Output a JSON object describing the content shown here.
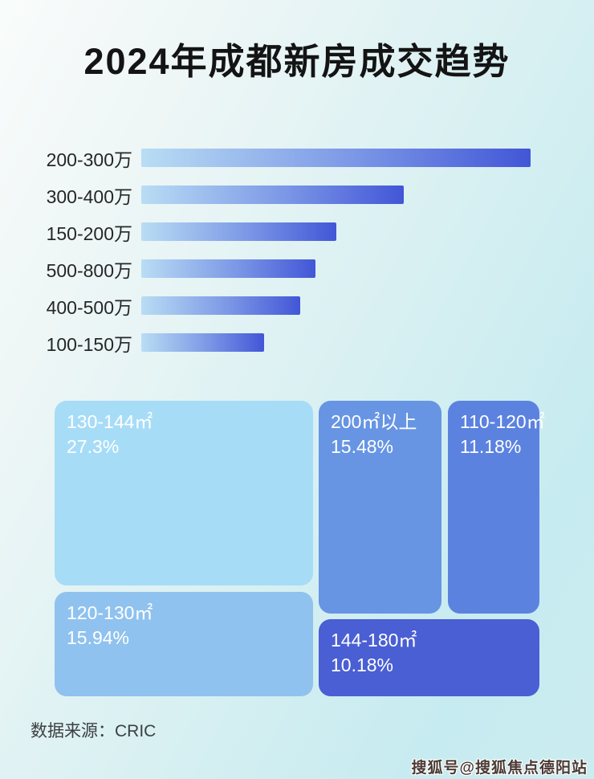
{
  "title": "2024年成都新房成交趋势",
  "source": {
    "label": "数据来源：CRIC"
  },
  "watermark": {
    "text": "搜狐号@搜狐焦点德阳站"
  },
  "colors": {
    "background_start": "#f9fcfb",
    "background_end": "#c6ebf0",
    "title": "#141414",
    "bar_label": "#262626",
    "bar_gradient": {
      "start": "#b9ddf4",
      "mid": "#7b97e6",
      "end": "#4256d7"
    },
    "source_text": "#3c4043",
    "watermark_text": "#4b3a34"
  },
  "chart_data": [
    {
      "type": "bar",
      "orientation": "horizontal",
      "title": "2024年成都新房成交趋势",
      "categories": [
        "200-300万",
        "300-400万",
        "150-200万",
        "500-800万",
        "400-500万",
        "100-150万"
      ],
      "values": [
        100,
        67.4,
        50.1,
        44.7,
        40.8,
        31.5
      ],
      "value_unit": "relative bar length, % of longest bar (bars carry no printed values)",
      "legend": "none",
      "grid": "off"
    },
    {
      "type": "treemap",
      "items": [
        {
          "label": "130-144㎡",
          "value": 27.3,
          "value_text": "27.3%",
          "color": "#a7dcf7"
        },
        {
          "label": "200㎡以上",
          "value": 15.48,
          "value_text": "15.48%",
          "color": "#6795e3"
        },
        {
          "label": "110-120㎡",
          "value": 11.18,
          "value_text": "11.18%",
          "color": "#5c82e0"
        },
        {
          "label": "120-130㎡",
          "value": 15.94,
          "value_text": "15.94%",
          "color": "#8fc2ee"
        },
        {
          "label": "144-180㎡",
          "value": 10.18,
          "value_text": "10.18%",
          "color": "#4a5fd3"
        }
      ]
    }
  ]
}
